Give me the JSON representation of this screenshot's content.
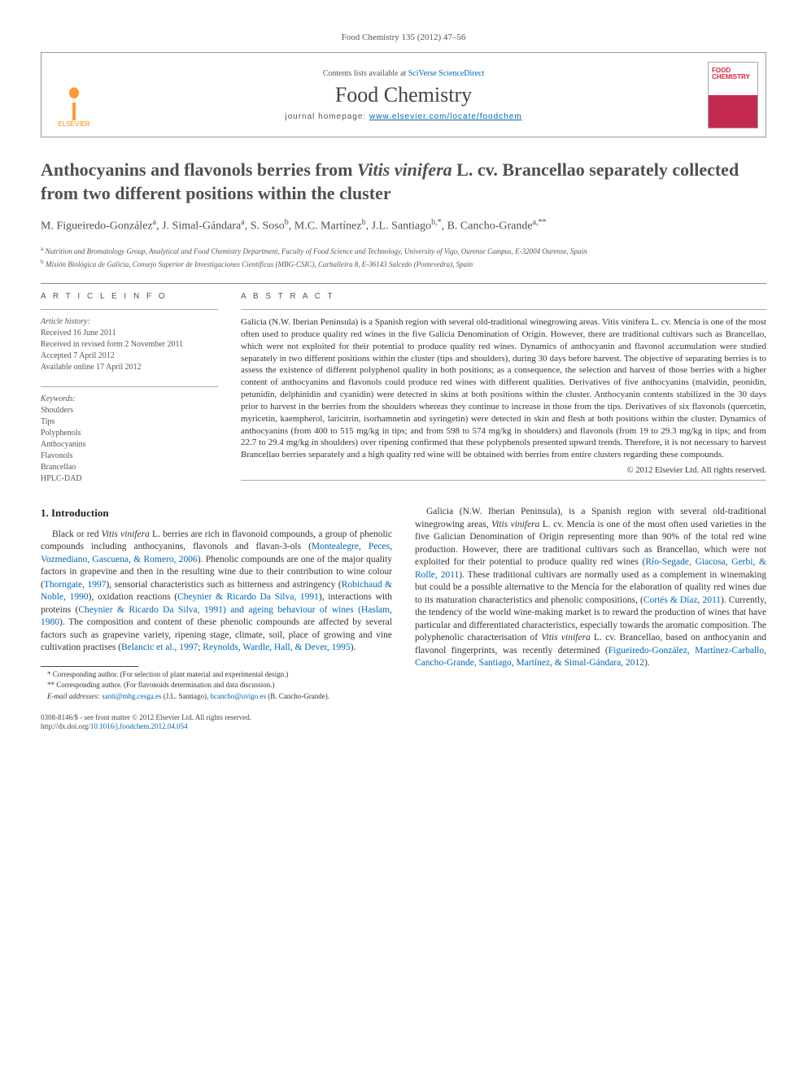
{
  "journal_ref": "Food Chemistry 135 (2012) 47–56",
  "header": {
    "contents_prefix": "Contents lists available at ",
    "contents_link": "SciVerse ScienceDirect",
    "journal_name": "Food Chemistry",
    "homepage_prefix": "journal homepage: ",
    "homepage_url": "www.elsevier.com/locate/foodchem",
    "publisher": "ELSEVIER",
    "cover_label_1": "FOOD",
    "cover_label_2": "CHEMISTRY"
  },
  "title_line1": "Anthocyanins and flavonols berries from ",
  "title_ital": "Vitis vinifera",
  "title_line2": " L. cv. Brancellao separately collected from two different positions within the cluster",
  "authors_html": "M. Figueiredo-González<sup>a</sup>, J. Simal-Gándara<sup>a</sup>, S. Soso<sup>b</sup>, M.C. Martínez<sup>b</sup>, J.L. Santiago<sup>b,*</sup>, B. Cancho-Grande<sup>a,**</sup>",
  "affiliations": [
    {
      "sup": "a",
      "text": "Nutrition and Bromatology Group, Analytical and Food Chemistry Department, Faculty of Food Science and Technology, University of Vigo, Ourense Campus, E-32004 Ourense, Spain"
    },
    {
      "sup": "b",
      "text": "Misión Biológica de Galicia, Consejo Superior de Investigaciones Científicas (MBG-CSIC), Carballeira 8, E-36143 Salcedo (Pontevedra), Spain"
    }
  ],
  "info_head": "A R T I C L E   I N F O",
  "abs_head": "A B S T R A C T",
  "history": {
    "label": "Article history:",
    "lines": [
      "Received 16 June 2011",
      "Received in revised form 2 November 2011",
      "Accepted 7 April 2012",
      "Available online 17 April 2012"
    ]
  },
  "keywords": {
    "label": "Keywords:",
    "items": [
      "Shoulders",
      "Tips",
      "Polyphenols",
      "Anthocyanins",
      "Flavonols",
      "Brancellao",
      "HPLC-DAD"
    ]
  },
  "abstract": "Galicia (N.W. Iberian Peninsula) is a Spanish region with several old-traditional winegrowing areas. Vitis vinifera L. cv. Mencía is one of the most often used to produce quality red wines in the five Galicia Denomination of Origin. However, there are traditional cultivars such as Brancellao, which were not exploited for their potential to produce quality red wines. Dynamics of anthocyanin and flavonol accumulation were studied separately in two different positions within the cluster (tips and shoulders), during 30 days before harvest. The objective of separating berries is to assess the existence of different polyphenol quality in both positions; as a consequence, the selection and harvest of those berries with a higher content of anthocyanins and flavonols could produce red wines with different qualities. Derivatives of five anthocyanins (malvidin, peonidin, petunidin, delphinidin and cyanidin) were detected in skins at both positions within the cluster. Anthocyanin contents stabilized in the 30 days prior to harvest in the berries from the shoulders whereas they continue to increase in those from the tips. Derivatives of six flavonols (quercetin, myricetin, kaempherol, laricitrin, isorhamnetin and syringetin) were detected in skin and flesh at both positions within the cluster. Dynamics of anthocyanins (from 400 to 515 mg/kg in tips; and from 598 to 574 mg/kg in shoulders) and flavonols (from 19 to 29.3 mg/kg in tips; and from 22.7 to 29.4 mg/kg in shoulders) over ripening confirmed that these polyphenols presented upward trends. Therefore, it is not necessary to harvest Brancellao berries separately and a high quality red wine will be obtained with berries from entire clusters regarding these compounds.",
  "copyright": "© 2012 Elsevier Ltd. All rights reserved.",
  "intro_head": "1. Introduction",
  "intro_p1_a": "Black or red ",
  "intro_p1_ital": "Vitis vinifera",
  "intro_p1_b": " L. berries are rich in flavonoid compounds, a group of phenolic compounds including anthocyanins, flavonols and flavan-3-ols (",
  "intro_p1_ref1": "Montealegre, Peces, Vozmediano, Gascuena, & Romero, 2006",
  "intro_p1_c": "). Phenolic compounds are one of the major quality factors in grapevine and then in the resulting wine due to their contribution to wine colour (",
  "intro_p1_ref2": "Thorngate, 1997",
  "intro_p1_d": "), sensorial characteristics such as bitterness and astringency (",
  "intro_p1_ref3": "Robichaud & Noble, 1990",
  "intro_p1_e": "), oxidation reactions (",
  "intro_p1_ref4": "Cheynier & Ricardo Da Silva, 1991",
  "intro_p1_f": "), interactions with proteins (",
  "intro_p1_ref5": "Cheynier & Ricardo Da Silva, 1991) and ageing behaviour of wines (Haslam, 1980",
  "intro_p1_g": "). The composition and content of these phenolic compounds are affected by several factors such as grapevine variety, ripening stage, climate, soil, place of growing and vine cultivation practises (",
  "intro_p1_ref6": "Belancic et al., 1997; Reynolds, Wardle, Hall, & Dever, 1995",
  "intro_p1_h": ").",
  "intro_p2_a": "Galicia (N.W. Iberian Peninsula), is a Spanish region with several old-traditional winegrowing areas, ",
  "intro_p2_ital": "Vitis vinifera",
  "intro_p2_b": " L. cv. Mencía is one of the most often used varieties in the five Galician Denomination of Origin representing more than 90% of the total red wine production. However, there are traditional cultivars such as Brancellao, which were not exploited for their potential to produce quality red wines (",
  "intro_p2_ref1": "Río-Segade, Giacosa, Gerbi, & Rolle, 2011",
  "intro_p2_c": "). These traditional cultivars are normally used as a complement in winemaking but could be a possible alternative to the Mencía for the elaboration of quality red wines due to its maturation characteristics and phenolic compositions, (",
  "intro_p2_ref2": "Cortés & Díaz, 2011",
  "intro_p2_d": "). Currently, the tendency of the world wine-making market is to reward the production of wines that have particular and differentiated characteristics, especially towards the aromatic composition. The polyphenolic characterisation of ",
  "intro_p2_ital2": "Vitis vinifera",
  "intro_p2_e": " L. cv. Brancellao, based on anthocyanin and flavonol fingerprints, was recently determined (",
  "intro_p2_ref3": "Figueiredo-González, Martínez-Carballo, Cancho-Grande, Santiago, Martínez, & Simal-Gándara, 2012",
  "intro_p2_f": ").",
  "footnotes": {
    "f1": "* Corresponding author. (For selection of plant material and experimental design.)",
    "f2": "** Corresponding author. (For flavonoids determination and data discussion.)",
    "f3_pre": "E-mail addresses: ",
    "f3_e1": "santi@mbg.cesga.es",
    "f3_mid1": " (J.L. Santiago), ",
    "f3_e2": "bcancho@uvigo.es",
    "f3_mid2": " (B. Cancho-Grande)."
  },
  "bottom": {
    "line1": "0308-8146/$ - see front matter © 2012 Elsevier Ltd. All rights reserved.",
    "doi_label": "http://dx.doi.org/",
    "doi": "10.1016/j.foodchem.2012.04.054"
  },
  "colors": {
    "link": "#0066b3",
    "text": "#333333",
    "muted": "#555555",
    "elsevier": "#ff8400",
    "cover": "#c42a4f"
  }
}
